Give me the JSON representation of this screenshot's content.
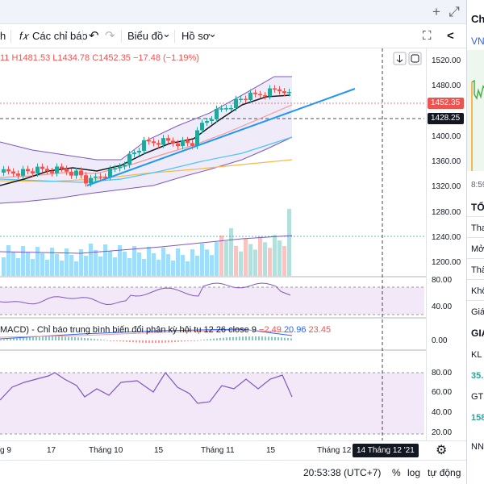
{
  "window": {
    "add_icon": "+",
    "expand_icon": "⤢"
  },
  "toolbar": {
    "left_fragment": "h",
    "indicators_icon": "f𝑥",
    "indicators_label": "Các chỉ báo",
    "undo_icon": "↶",
    "redo_icon": "↷",
    "chart_type_label": "Biểu đồ",
    "profile_label": "Hồ sơ",
    "caret": "⌄",
    "fullscreen_icon": "⛶",
    "share_icon": "<"
  },
  "legend": {
    "o_fragment": "11",
    "h": "H1481.53",
    "l": "L1434.78",
    "c": "C1452.35",
    "change": "−17.48 (−1.19%)"
  },
  "macd_legend": {
    "text": "MACD) - Chỉ báo trung bình biến đổi phân kỳ hội tụ 12 26 close 9",
    "v1": "−2.49",
    "v2": "20.96",
    "v3": "23.45"
  },
  "price_axis": {
    "labels": [
      "1520.00",
      "1480.00",
      "1400.00",
      "1360.00",
      "1320.00",
      "1280.00",
      "1240.00",
      "1200.00"
    ],
    "last_price": "1452.35",
    "crosshair_price": "1428.25",
    "rsi_labels": [
      "80.00",
      "40.00"
    ],
    "macd_labels": [
      "0.00"
    ],
    "stoch_labels": [
      "80.00",
      "60.00",
      "40.00",
      "20.00"
    ]
  },
  "time_axis": {
    "labels": [
      "g 9",
      "17",
      "Tháng 10",
      "15",
      "Tháng 11",
      "15",
      "Tháng 12"
    ],
    "crosshair": "14 Tháng 12 '21"
  },
  "status": {
    "time": "20:53:38 (UTC+7)",
    "percent": "%",
    "log": "log",
    "auto": "tự động"
  },
  "right_panel": {
    "header": "Ch",
    "symbol": "VN",
    "axis_time": "8:59",
    "section1": "TỔ",
    "rows": [
      "Tha",
      "Mở",
      "Thấ",
      "Khố",
      "Giá"
    ],
    "section2": "GIA",
    "kl": "KL",
    "kl_value": "35.",
    "gt": "GT",
    "gt_value": "158",
    "nn": "NN"
  },
  "colors": {
    "up": "#26a69a",
    "down": "#ef5350",
    "band": "#7e57c2",
    "trend": "#2196f3",
    "ma_black": "#131722",
    "ma_teal": "#4fc3f7",
    "ma_orange": "#f6b94b"
  }
}
